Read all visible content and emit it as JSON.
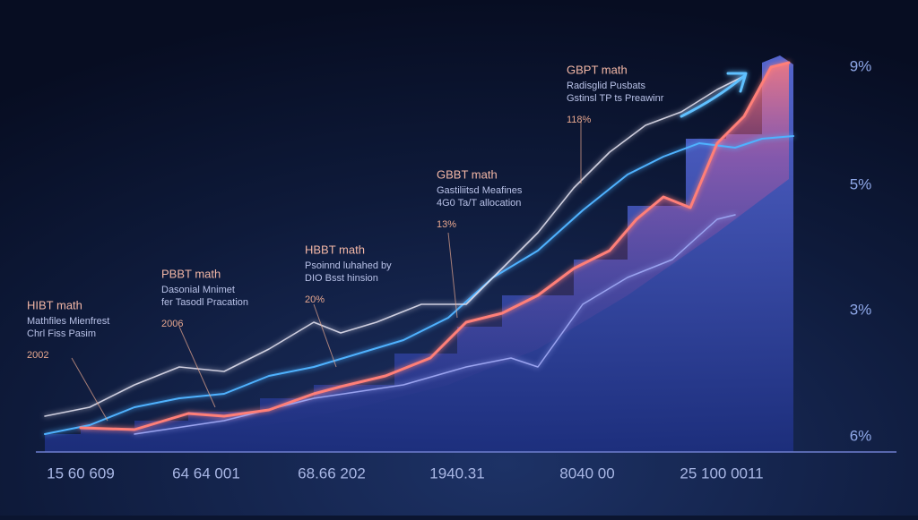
{
  "annotations": [
    {
      "title": "HIBT math",
      "lines": [
        "Mathfiles Mienfrest",
        "Chrl Fiss Pasim"
      ],
      "value": "2002"
    },
    {
      "title": "PBBT math",
      "lines": [
        "Dasonial Mnimet",
        "fer Tasodl Pracation"
      ],
      "value": "2006"
    },
    {
      "title": "HBBT math",
      "lines": [
        "Psoinnd luhahed by",
        "DIO Bsst hinsion"
      ],
      "value": "20%"
    },
    {
      "title": "GBBT math",
      "lines": [
        "Gastiliitsd Meafines",
        "4G0 Ta/T allocation"
      ],
      "value": "13%"
    },
    {
      "title": "GBPT math",
      "lines": [
        "Radisglid Pusbats",
        "Gstinsl TP ts Preawinr"
      ],
      "value": "118%"
    }
  ],
  "right_axis_labels": [
    "9%",
    "5%",
    "3%",
    "6%"
  ],
  "x_axis_labels": [
    "15 60 609",
    "64 64 001",
    "68.66 202",
    "1940.31",
    "8040 00",
    "25 100 0011"
  ]
}
